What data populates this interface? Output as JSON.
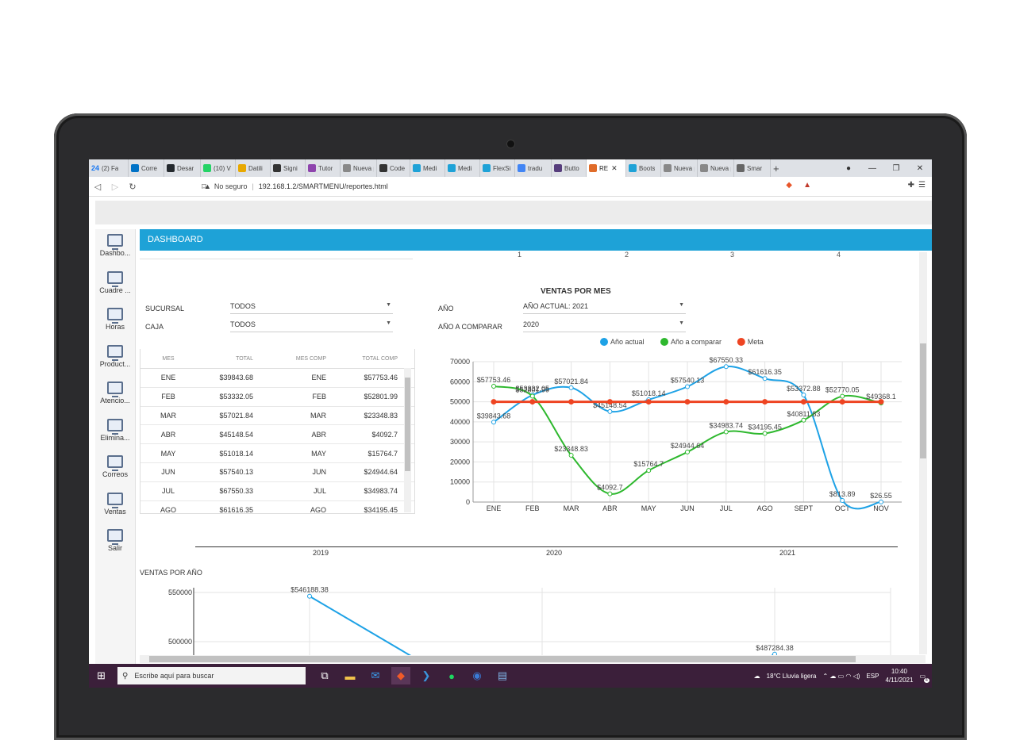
{
  "browser": {
    "tabs": [
      {
        "label": "(2) Fa",
        "badge": "24",
        "color": "#1877f2"
      },
      {
        "label": "Corre",
        "color": "#0072c6"
      },
      {
        "label": "Desar",
        "color": "#24292e"
      },
      {
        "label": "(10) V",
        "color": "#25d366"
      },
      {
        "label": "Datili",
        "color": "#e8a800"
      },
      {
        "label": "Signi",
        "color": "#333333"
      },
      {
        "label": "Tutor",
        "color": "#8e44ad"
      },
      {
        "label": "Nueva pe",
        "color": "#888888"
      },
      {
        "label": "Code",
        "color": "#333333"
      },
      {
        "label": "Medi",
        "color": "#1ea2d7"
      },
      {
        "label": "Medi",
        "color": "#1ea2d7"
      },
      {
        "label": "FlexSi",
        "color": "#1ea2d7"
      },
      {
        "label": "tradu",
        "color": "#4285f4"
      },
      {
        "label": "Butto",
        "color": "#563d7c"
      },
      {
        "label": "RE",
        "color": "#e06c2a",
        "active": true
      },
      {
        "label": "Boots",
        "color": "#1ea2d7"
      },
      {
        "label": "Nueva pe",
        "color": "#888888"
      },
      {
        "label": "Nueva pe",
        "color": "#888888"
      },
      {
        "label": "Smar",
        "color": "#666666"
      }
    ],
    "security": "No seguro",
    "url": "192.168.1.2/SMARTMENU/reportes.html"
  },
  "sidebar": {
    "items": [
      {
        "label": "Dashbo..."
      },
      {
        "label": "Cuadre ..."
      },
      {
        "label": "Horas"
      },
      {
        "label": "Product..."
      },
      {
        "label": "Atencio..."
      },
      {
        "label": "Elimina..."
      },
      {
        "label": "Correos"
      },
      {
        "label": "Ventas"
      },
      {
        "label": "Salir"
      }
    ]
  },
  "header": {
    "title": "DASHBOARD"
  },
  "top_axis_ticks": [
    "1",
    "2",
    "3",
    "4"
  ],
  "filters": {
    "sucursal_label": "SUCURSAL",
    "sucursal_value": "TODOS",
    "caja_label": "CAJA",
    "caja_value": "TODOS",
    "anio_label": "AÑO",
    "anio_value": "AÑO ACTUAL: 2021",
    "anio_comp_label": "AÑO A COMPARAR",
    "anio_comp_value": "2020"
  },
  "table": {
    "headers": [
      "MES",
      "TOTAL",
      "MES COMP",
      "TOTAL COMP"
    ],
    "rows": [
      [
        "ENE",
        "$39843.68",
        "ENE",
        "$57753.46"
      ],
      [
        "FEB",
        "$53332.05",
        "FEB",
        "$52801.99"
      ],
      [
        "MAR",
        "$57021.84",
        "MAR",
        "$23348.83"
      ],
      [
        "ABR",
        "$45148.54",
        "ABR",
        "$4092.7"
      ],
      [
        "MAY",
        "$51018.14",
        "MAY",
        "$15764.7"
      ],
      [
        "JUN",
        "$57540.13",
        "JUN",
        "$24944.64"
      ],
      [
        "JUL",
        "$67550.33",
        "JUL",
        "$34983.74"
      ],
      [
        "AGO",
        "$61616.35",
        "AGO",
        "$34195.45"
      ]
    ]
  },
  "chart_data": [
    {
      "type": "line",
      "title": "VENTAS POR MES",
      "categories": [
        "ENE",
        "FEB",
        "MAR",
        "ABR",
        "MAY",
        "JUN",
        "JUL",
        "AGO",
        "SEPT",
        "OCT",
        "NOV"
      ],
      "ylim": [
        0,
        70000
      ],
      "yticks": [
        "0",
        "10000",
        "20000",
        "30000",
        "40000",
        "50000",
        "60000",
        "70000"
      ],
      "legend": "top",
      "grid": true,
      "series": [
        {
          "name": "Año actual",
          "color": "#1ea2e6",
          "values": [
            39843.68,
            53332.05,
            57021.84,
            45148.54,
            51018.14,
            57540.13,
            67550.33,
            61616.35,
            53372.88,
            813.89,
            26.55
          ],
          "labels": [
            "$39843.68",
            "$53332.05",
            "$57021.84",
            "$45148.54",
            "$51018.14",
            "$57540.13",
            "$67550.33",
            "$61616.35",
            "$53372.88",
            "$813.89",
            "$26.55"
          ]
        },
        {
          "name": "Año a comparar",
          "color": "#2eb82e",
          "values": [
            57753.46,
            52801.99,
            23348.83,
            4092.7,
            15764.7,
            24944.64,
            34983.74,
            34195.45,
            40811.83,
            52770.05,
            49368.1
          ],
          "labels": [
            "$57753.46",
            "$52801.99",
            "$23348.83",
            "$4092.7",
            "$15764.7",
            "$24944.64",
            "$34983.74",
            "$34195.45",
            "$40811.83",
            "$52770.05",
            "$49368.1"
          ]
        },
        {
          "name": "Meta",
          "color": "#ee4422",
          "values": [
            50000,
            50000,
            50000,
            50000,
            50000,
            50000,
            50000,
            50000,
            50000,
            50000,
            50000
          ]
        }
      ]
    },
    {
      "type": "line",
      "title": "VENTAS POR AÑO",
      "categories": [
        "2019",
        "2020",
        "2021"
      ],
      "yticks": [
        "550000",
        "500000"
      ],
      "grid": true,
      "series": [
        {
          "color": "#1ea2e6",
          "values": [
            546188.38,
            null,
            487284.38
          ],
          "labels": [
            "$546188.38",
            "",
            "$487284.38"
          ]
        }
      ]
    }
  ],
  "taskbar": {
    "search_placeholder": "Escribe aquí para buscar",
    "weather": "18°C Lluvia ligera",
    "lang": "ESP",
    "time": "10:40",
    "date": "4/11/2021",
    "notifications": "4"
  }
}
